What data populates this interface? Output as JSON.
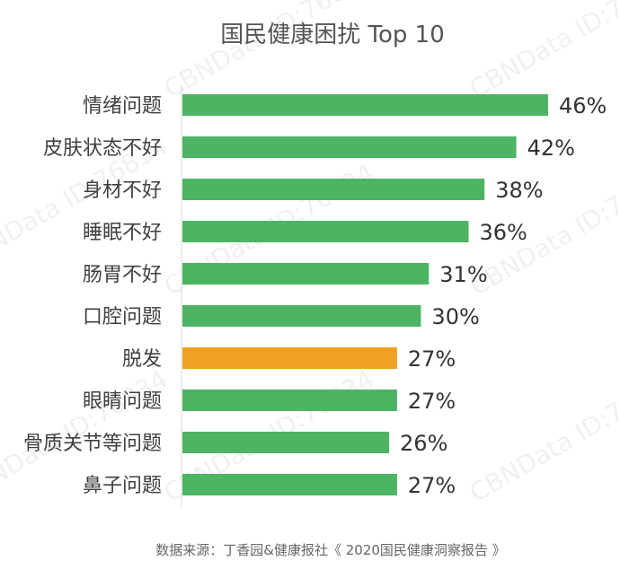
{
  "chart_data": {
    "type": "bar",
    "orientation": "horizontal",
    "title": "国民健康困扰 Top 10",
    "categories": [
      "情绪问题",
      "皮肤状态不好",
      "身材不好",
      "睡眠不好",
      "肠胃不好",
      "口腔问题",
      "脱发",
      "眼睛问题",
      "骨质关节等问题",
      "鼻子问题"
    ],
    "values": [
      46,
      42,
      38,
      36,
      31,
      30,
      27,
      27,
      26,
      27
    ],
    "value_labels": [
      "46%",
      "42%",
      "38%",
      "36%",
      "31%",
      "30%",
      "27%",
      "27%",
      "26%",
      "27%"
    ],
    "highlight_index": 6,
    "colors": {
      "default": "#4db463",
      "highlight": "#f0a024"
    },
    "xlim": [
      0,
      46
    ],
    "grid": false,
    "legend": "none"
  },
  "source": "数据来源：丁香园&健康报社《 2020国民健康洞察报告 》",
  "watermark": "CBNData ID:76834"
}
